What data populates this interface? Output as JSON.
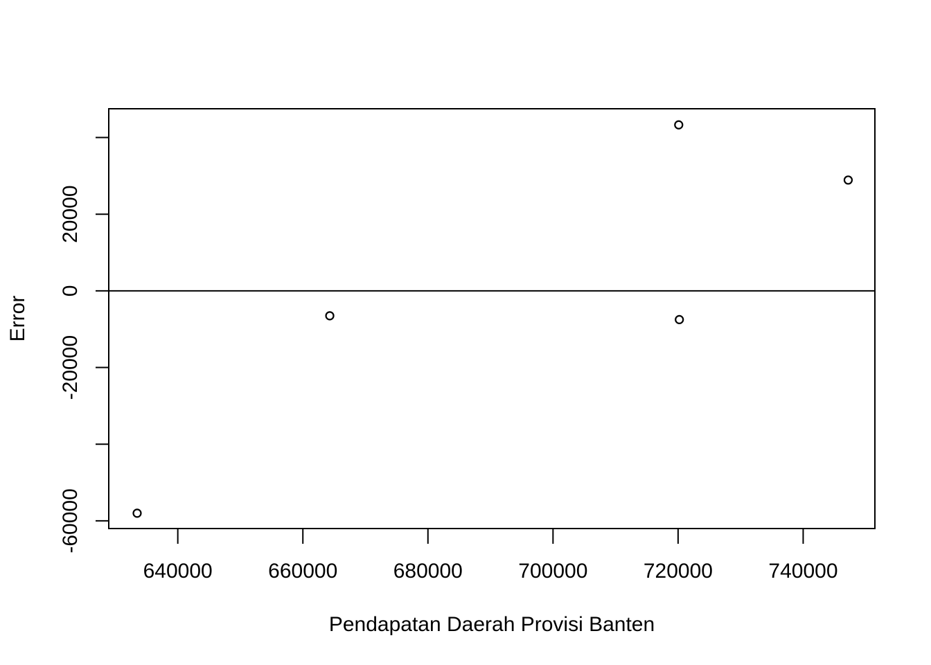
{
  "chart_data": {
    "type": "scatter",
    "title": "",
    "xlabel": "Pendapatan Daerah Provisi Banten",
    "ylabel": "Error",
    "xlim": [
      628960,
      751470
    ],
    "ylim": [
      -62000,
      47500
    ],
    "x_ticks": [
      640000,
      660000,
      680000,
      700000,
      720000,
      740000
    ],
    "x_tick_labels": [
      "640000",
      "660000",
      "680000",
      "700000",
      "720000",
      "740000"
    ],
    "y_ticks": [
      -60000,
      -40000,
      -20000,
      0,
      20000,
      40000
    ],
    "y_tick_labels": [
      "-60000",
      "",
      "-20000",
      "0",
      "20000",
      ""
    ],
    "hline": 0,
    "grid": false,
    "legend": "none",
    "marker": "open-circle",
    "color": "#000000",
    "points": [
      {
        "x": 633500,
        "y": -58000
      },
      {
        "x": 664300,
        "y": -6500
      },
      {
        "x": 720100,
        "y": 43300
      },
      {
        "x": 720200,
        "y": -7500
      },
      {
        "x": 747200,
        "y": 28900
      }
    ]
  }
}
